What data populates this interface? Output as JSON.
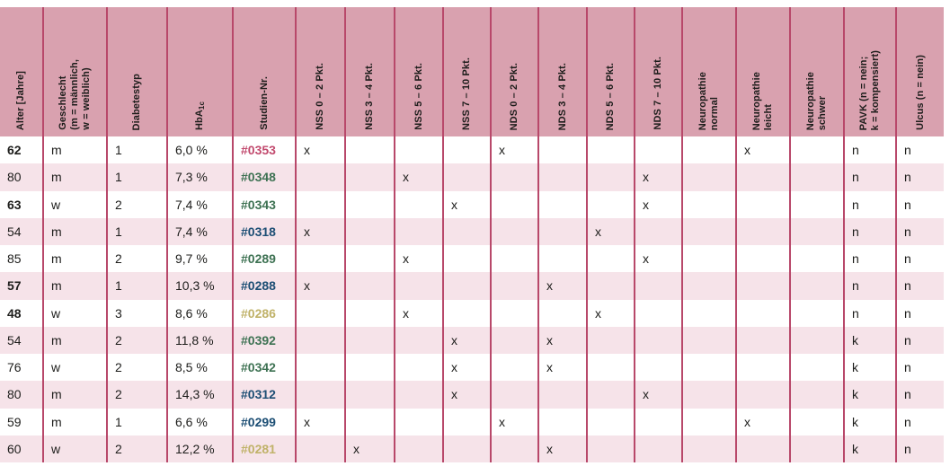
{
  "table": {
    "colors": {
      "header_bg": "#d9a1af",
      "stripe": "#f6e3e9",
      "grid_line": "#b8486a",
      "text": "#1d1d1b",
      "study_rose": "#c24a6e",
      "study_green": "#3e7253",
      "study_blue": "#1c4e74",
      "study_khaki": "#c0b269"
    },
    "columns": [
      {
        "id": "alter",
        "label": "Alter [Jahre]"
      },
      {
        "id": "geschlecht",
        "label": "Geschlecht\n(m = männlich,\nw = weiblich)"
      },
      {
        "id": "diabetestyp",
        "label": "Diabetestyp"
      },
      {
        "id": "hba1c",
        "label": "HbA",
        "sub": "1c"
      },
      {
        "id": "studien_nr",
        "label": "Studien-Nr."
      },
      {
        "id": "nss_0_2",
        "label": "NSS 0 – 2 Pkt."
      },
      {
        "id": "nss_3_4",
        "label": "NSS 3 – 4 Pkt."
      },
      {
        "id": "nss_5_6",
        "label": "NSS 5 – 6 Pkt."
      },
      {
        "id": "nss_7_10",
        "label": "NSS 7 – 10 Pkt."
      },
      {
        "id": "nds_0_2",
        "label": "NDS 0 – 2 Pkt."
      },
      {
        "id": "nds_3_4",
        "label": "NDS 3 – 4 Pkt."
      },
      {
        "id": "nds_5_6",
        "label": "NDS 5 – 6 Pkt."
      },
      {
        "id": "nds_7_10",
        "label": "NDS 7 – 10 Pkt."
      },
      {
        "id": "neuropathie_normal",
        "label": "Neuropathie\nnormal"
      },
      {
        "id": "neuropathie_leicht",
        "label": "Neuropathie\nleicht"
      },
      {
        "id": "neuropathie_schwer",
        "label": "Neuropathie\nschwer"
      },
      {
        "id": "pavk",
        "label": "PAVK (n = nein;\nk = kompensiert)"
      },
      {
        "id": "ulcus",
        "label": "Ulcus (n = nein)"
      }
    ],
    "rows": [
      {
        "cells": [
          "62",
          "m",
          "1",
          "6,0 %",
          "#0353",
          "x",
          "",
          "",
          "",
          "x",
          "",
          "",
          "",
          "",
          "x",
          "",
          "n",
          "n"
        ],
        "age_bold": true,
        "study_color": "study_rose",
        "study_bold": false
      },
      {
        "cells": [
          "80",
          "m",
          "1",
          "7,3 %",
          "#0348",
          "",
          "",
          "x",
          "",
          "",
          "",
          "",
          "x",
          "",
          "",
          "",
          "n",
          "n"
        ],
        "age_bold": false,
        "study_color": "study_green",
        "study_bold": false
      },
      {
        "cells": [
          "63",
          "w",
          "2",
          "7,4 %",
          "#0343",
          "",
          "",
          "",
          "x",
          "",
          "",
          "",
          "x",
          "",
          "",
          "",
          "n",
          "n"
        ],
        "age_bold": true,
        "study_color": "study_green",
        "study_bold": false
      },
      {
        "cells": [
          "54",
          "m",
          "1",
          "7,4 %",
          "#0318",
          "x",
          "",
          "",
          "",
          "",
          "",
          "x",
          "",
          "",
          "",
          "",
          "n",
          "n"
        ],
        "age_bold": false,
        "study_color": "study_blue",
        "study_bold": true
      },
      {
        "cells": [
          "85",
          "m",
          "2",
          "9,7 %",
          "#0289",
          "",
          "",
          "x",
          "",
          "",
          "",
          "",
          "x",
          "",
          "",
          "",
          "n",
          "n"
        ],
        "age_bold": false,
        "study_color": "study_green",
        "study_bold": false
      },
      {
        "cells": [
          "57",
          "m",
          "1",
          "10,3 %",
          "#0288",
          "x",
          "",
          "",
          "",
          "",
          "x",
          "",
          "",
          "",
          "",
          "",
          "n",
          "n"
        ],
        "age_bold": true,
        "study_color": "study_blue",
        "study_bold": true
      },
      {
        "cells": [
          "48",
          "w",
          "3",
          "8,6 %",
          "#0286",
          "",
          "",
          "x",
          "",
          "",
          "",
          "x",
          "",
          "",
          "",
          "",
          "n",
          "n"
        ],
        "age_bold": true,
        "study_color": "study_khaki",
        "study_bold": false
      },
      {
        "cells": [
          "54",
          "m",
          "2",
          "11,8 %",
          "#0392",
          "",
          "",
          "",
          "x",
          "",
          "x",
          "",
          "",
          "",
          "",
          "",
          "k",
          "n"
        ],
        "age_bold": false,
        "study_color": "study_green",
        "study_bold": false
      },
      {
        "cells": [
          "76",
          "w",
          "2",
          "8,5 %",
          "#0342",
          "",
          "",
          "",
          "x",
          "",
          "x",
          "",
          "",
          "",
          "",
          "",
          "k",
          "n"
        ],
        "age_bold": false,
        "study_color": "study_green",
        "study_bold": false
      },
      {
        "cells": [
          "80",
          "m",
          "2",
          "14,3 %",
          "#0312",
          "",
          "",
          "",
          "x",
          "",
          "",
          "",
          "x",
          "",
          "",
          "",
          "k",
          "n"
        ],
        "age_bold": false,
        "study_color": "study_blue",
        "study_bold": true
      },
      {
        "cells": [
          "59",
          "m",
          "1",
          "6,6 %",
          "#0299",
          "x",
          "",
          "",
          "",
          "x",
          "",
          "",
          "",
          "",
          "x",
          "",
          "k",
          "n"
        ],
        "age_bold": false,
        "study_color": "study_blue",
        "study_bold": true
      },
      {
        "cells": [
          "60",
          "w",
          "2",
          "12,2 %",
          "#0281",
          "",
          "x",
          "",
          "",
          "",
          "x",
          "",
          "",
          "",
          "",
          "",
          "k",
          "n"
        ],
        "age_bold": false,
        "study_color": "study_khaki",
        "study_bold": false
      }
    ]
  }
}
